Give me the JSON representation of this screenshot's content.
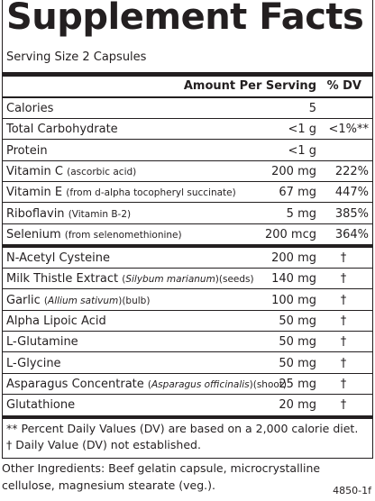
{
  "title": "Supplement Facts",
  "serving_size": "Serving Size 2 Capsules",
  "header": {
    "amount": "Amount Per Serving",
    "dv": "% DV"
  },
  "rows": [
    {
      "name": "Calories",
      "amount": "5",
      "dv": ""
    },
    {
      "name": "Total Carbohydrate",
      "amount": "<1 g",
      "dv": "<1%**"
    },
    {
      "name": "Protein",
      "amount": "<1 g",
      "dv": ""
    },
    {
      "name": "Vitamin C",
      "detail": [
        {
          "text": "(ascorbic acid)"
        }
      ],
      "amount": "200 mg",
      "dv": "222%"
    },
    {
      "name": "Vitamin E",
      "detail": [
        {
          "text": "(from d-alpha tocopheryl succinate)"
        }
      ],
      "amount": "67 mg",
      "dv": "447%"
    },
    {
      "name": "Riboflavin",
      "detail": [
        {
          "text": "(Vitamin B-2)"
        }
      ],
      "amount": "5 mg",
      "dv": "385%"
    },
    {
      "name": "Selenium",
      "detail": [
        {
          "text": "(from selenomethionine)"
        }
      ],
      "amount": "200 mcg",
      "dv": "364%"
    },
    {
      "name": "N-Acetyl Cysteine",
      "amount": "200 mg",
      "dv": "†"
    },
    {
      "name": "Milk Thistle Extract",
      "detail": [
        {
          "text": "("
        },
        {
          "text": "Silybum marianum",
          "italic": true
        },
        {
          "text": ")(seeds)"
        }
      ],
      "amount": "140 mg",
      "dv": "†"
    },
    {
      "name": "Garlic",
      "detail": [
        {
          "text": "("
        },
        {
          "text": "Allium sativum",
          "italic": true
        },
        {
          "text": ")(bulb)"
        }
      ],
      "amount": "100 mg",
      "dv": "†"
    },
    {
      "name": "Alpha Lipoic Acid",
      "amount": "50 mg",
      "dv": "†"
    },
    {
      "name": "L-Glutamine",
      "amount": "50 mg",
      "dv": "†"
    },
    {
      "name": "L-Glycine",
      "amount": "50 mg",
      "dv": "†"
    },
    {
      "name": "Asparagus Concentrate",
      "detail": [
        {
          "text": "("
        },
        {
          "text": "Asparagus officinalis",
          "italic": true
        },
        {
          "text": ")(shoot)"
        }
      ],
      "amount": "25 mg",
      "dv": "†"
    },
    {
      "name": "Glutathione",
      "amount": "20 mg",
      "dv": "†"
    }
  ],
  "footnotes": [
    "** Percent Daily Values (DV) are based on a 2,000 calorie diet.",
    "† Daily Value (DV) not established."
  ],
  "other_ingredients": [
    "Other Ingredients: Beef gelatin capsule, microcrystalline",
    "cellulose, magnesium stearate (veg.)."
  ],
  "code": "4850-1f"
}
